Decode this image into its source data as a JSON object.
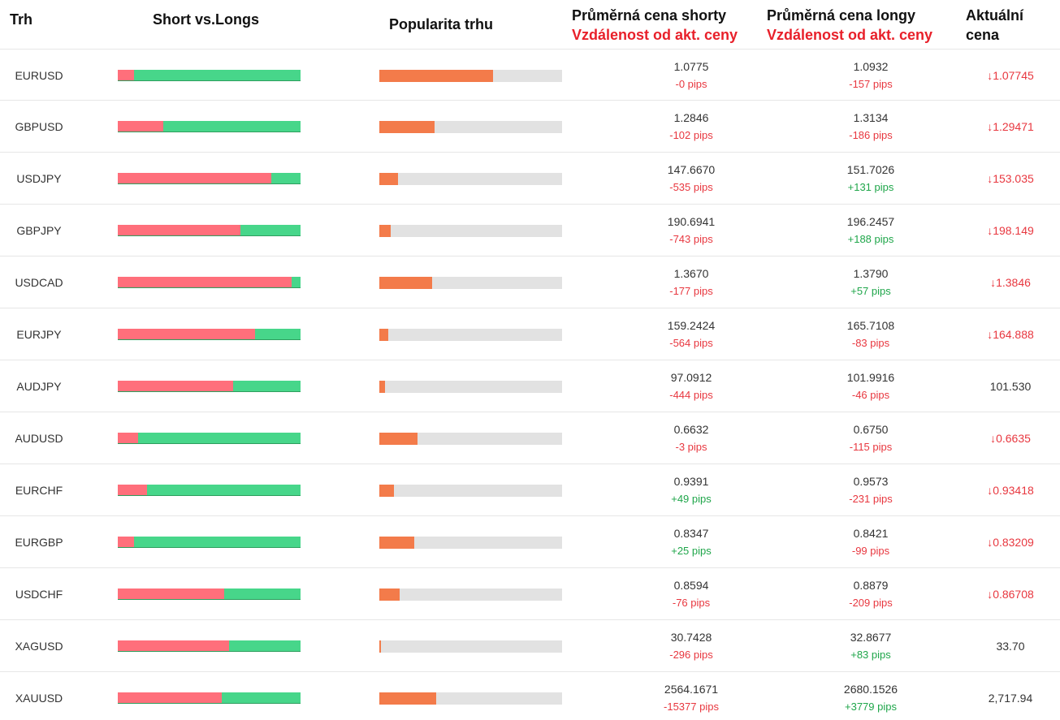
{
  "colors": {
    "short": "#ff6f7b",
    "long": "#47d68a",
    "popularity": "#f37b4a",
    "down": "#e8373f",
    "up": "#1fa64a",
    "neutral": "#333333"
  },
  "headers": {
    "market": "Trh",
    "short_vs_long": "Short vs.Longs",
    "popularity": "Popularita trhu",
    "avg_short": "Průměrná cena shorty",
    "avg_short_sub": "Vzdálenost od akt. ceny",
    "avg_long": "Průměrná cena longy",
    "avg_long_sub": "Vzdálenost od akt. ceny",
    "current": "Aktuální cena"
  },
  "rows": [
    {
      "pair": "EURUSD",
      "short_pct": 9,
      "popularity_pct": 62,
      "avg_short": "1.0775",
      "short_pips": "-0 pips",
      "short_pips_dir": "down",
      "avg_long": "1.0932",
      "long_pips": "-157 pips",
      "long_pips_dir": "down",
      "current": "1.07745",
      "trend": "down"
    },
    {
      "pair": "GBPUSD",
      "short_pct": 25,
      "popularity_pct": 30,
      "avg_short": "1.2846",
      "short_pips": "-102 pips",
      "short_pips_dir": "down",
      "avg_long": "1.3134",
      "long_pips": "-186 pips",
      "long_pips_dir": "down",
      "current": "1.29471",
      "trend": "down"
    },
    {
      "pair": "USDJPY",
      "short_pct": 84,
      "popularity_pct": 10,
      "avg_short": "147.6670",
      "short_pips": "-535 pips",
      "short_pips_dir": "down",
      "avg_long": "151.7026",
      "long_pips": "+131 pips",
      "long_pips_dir": "up",
      "current": "153.035",
      "trend": "down"
    },
    {
      "pair": "GBPJPY",
      "short_pct": 67,
      "popularity_pct": 6,
      "avg_short": "190.6941",
      "short_pips": "-743 pips",
      "short_pips_dir": "down",
      "avg_long": "196.2457",
      "long_pips": "+188 pips",
      "long_pips_dir": "up",
      "current": "198.149",
      "trend": "down"
    },
    {
      "pair": "USDCAD",
      "short_pct": 95,
      "popularity_pct": 29,
      "avg_short": "1.3670",
      "short_pips": "-177 pips",
      "short_pips_dir": "down",
      "avg_long": "1.3790",
      "long_pips": "+57 pips",
      "long_pips_dir": "up",
      "current": "1.3846",
      "trend": "down"
    },
    {
      "pair": "EURJPY",
      "short_pct": 75,
      "popularity_pct": 5,
      "avg_short": "159.2424",
      "short_pips": "-564 pips",
      "short_pips_dir": "down",
      "avg_long": "165.7108",
      "long_pips": "-83 pips",
      "long_pips_dir": "down",
      "current": "164.888",
      "trend": "down"
    },
    {
      "pair": "AUDJPY",
      "short_pct": 63,
      "popularity_pct": 3,
      "avg_short": "97.0912",
      "short_pips": "-444 pips",
      "short_pips_dir": "down",
      "avg_long": "101.9916",
      "long_pips": "-46 pips",
      "long_pips_dir": "down",
      "current": "101.530",
      "trend": "none"
    },
    {
      "pair": "AUDUSD",
      "short_pct": 11,
      "popularity_pct": 21,
      "avg_short": "0.6632",
      "short_pips": "-3 pips",
      "short_pips_dir": "down",
      "avg_long": "0.6750",
      "long_pips": "-115 pips",
      "long_pips_dir": "down",
      "current": "0.6635",
      "trend": "down"
    },
    {
      "pair": "EURCHF",
      "short_pct": 16,
      "popularity_pct": 8,
      "avg_short": "0.9391",
      "short_pips": "+49 pips",
      "short_pips_dir": "up",
      "avg_long": "0.9573",
      "long_pips": "-231 pips",
      "long_pips_dir": "down",
      "current": "0.93418",
      "trend": "down"
    },
    {
      "pair": "EURGBP",
      "short_pct": 9,
      "popularity_pct": 19,
      "avg_short": "0.8347",
      "short_pips": "+25 pips",
      "short_pips_dir": "up",
      "avg_long": "0.8421",
      "long_pips": "-99 pips",
      "long_pips_dir": "down",
      "current": "0.83209",
      "trend": "down"
    },
    {
      "pair": "USDCHF",
      "short_pct": 58,
      "popularity_pct": 11,
      "avg_short": "0.8594",
      "short_pips": "-76 pips",
      "short_pips_dir": "down",
      "avg_long": "0.8879",
      "long_pips": "-209 pips",
      "long_pips_dir": "down",
      "current": "0.86708",
      "trend": "down"
    },
    {
      "pair": "XAGUSD",
      "short_pct": 61,
      "popularity_pct": 1,
      "avg_short": "30.7428",
      "short_pips": "-296 pips",
      "short_pips_dir": "down",
      "avg_long": "32.8677",
      "long_pips": "+83 pips",
      "long_pips_dir": "up",
      "current": "33.70",
      "trend": "none"
    },
    {
      "pair": "XAUUSD",
      "short_pct": 57,
      "popularity_pct": 31,
      "avg_short": "2564.1671",
      "short_pips": "-15377 pips",
      "short_pips_dir": "down",
      "avg_long": "2680.1526",
      "long_pips": "+3779 pips",
      "long_pips_dir": "up",
      "current": "2,717.94",
      "trend": "none"
    }
  ]
}
